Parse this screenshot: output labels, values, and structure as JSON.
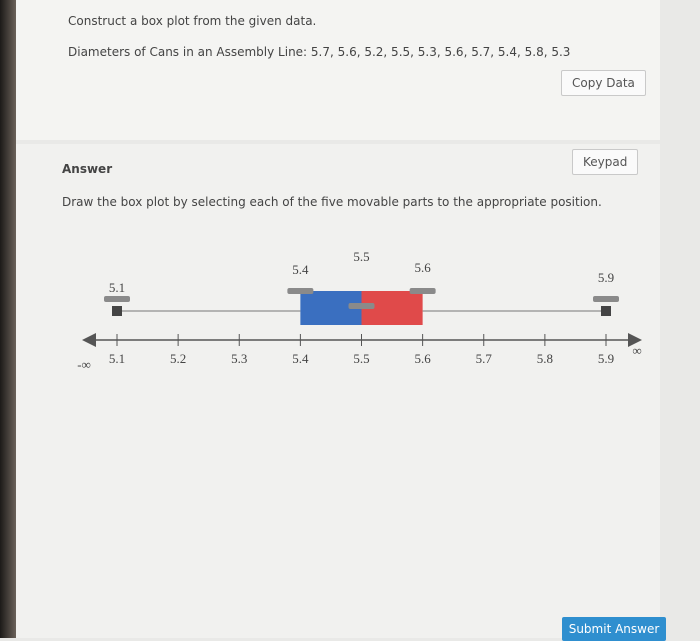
{
  "question": {
    "instruction": "Construct a box plot from the given data.",
    "data_line": "Diameters of Cans in an Assembly Line: 5.7, 5.6, 5.2, 5.5, 5.3, 5.6, 5.7, 5.4, 5.8, 5.3",
    "copy_button": "Copy Data"
  },
  "answer": {
    "heading": "Answer",
    "keypad_button": "Keypad",
    "instruction": "Draw the box plot by selecting each of the five movable parts to the appropriate position.",
    "box_plot": {
      "axis_ticks": [
        5.1,
        5.2,
        5.3,
        5.4,
        5.5,
        5.6,
        5.7,
        5.8,
        5.9
      ],
      "neg_infinity": "-∞",
      "pos_infinity": "∞",
      "handles": [
        5.1,
        5.4,
        5.5,
        5.6,
        5.9
      ]
    },
    "submit_button": "Submit Answer"
  }
}
